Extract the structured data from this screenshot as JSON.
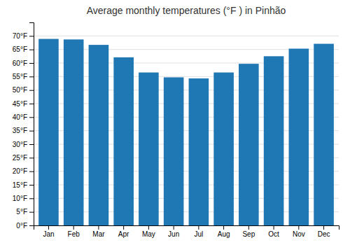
{
  "chart_data": {
    "type": "bar",
    "title": "Average monthly temperatures (°F ) in Pinhão",
    "categories": [
      "Jan",
      "Feb",
      "Mar",
      "Apr",
      "May",
      "Jun",
      "Jul",
      "Aug",
      "Sep",
      "Oct",
      "Nov",
      "Dec"
    ],
    "values": [
      68.9,
      68.7,
      66.7,
      62.1,
      56.5,
      54.7,
      54.3,
      56.5,
      59.7,
      62.5,
      65.3,
      67.1
    ],
    "ylim": [
      0,
      75
    ],
    "yticks": [
      {
        "value": 0,
        "label": "0°F"
      },
      {
        "value": 5,
        "label": "5°F"
      },
      {
        "value": 10,
        "label": "10°F"
      },
      {
        "value": 15,
        "label": "15°F"
      },
      {
        "value": 20,
        "label": "20°F"
      },
      {
        "value": 25,
        "label": "25°F"
      },
      {
        "value": 30,
        "label": "30°F"
      },
      {
        "value": 35,
        "label": "35°F"
      },
      {
        "value": 40,
        "label": "40°F"
      },
      {
        "value": 45,
        "label": "45°F"
      },
      {
        "value": 50,
        "label": "50°F"
      },
      {
        "value": 55,
        "label": "55°F"
      },
      {
        "value": 60,
        "label": "60°F"
      },
      {
        "value": 65,
        "label": "65°F"
      },
      {
        "value": 70,
        "label": "70°F"
      }
    ],
    "grid": true
  }
}
